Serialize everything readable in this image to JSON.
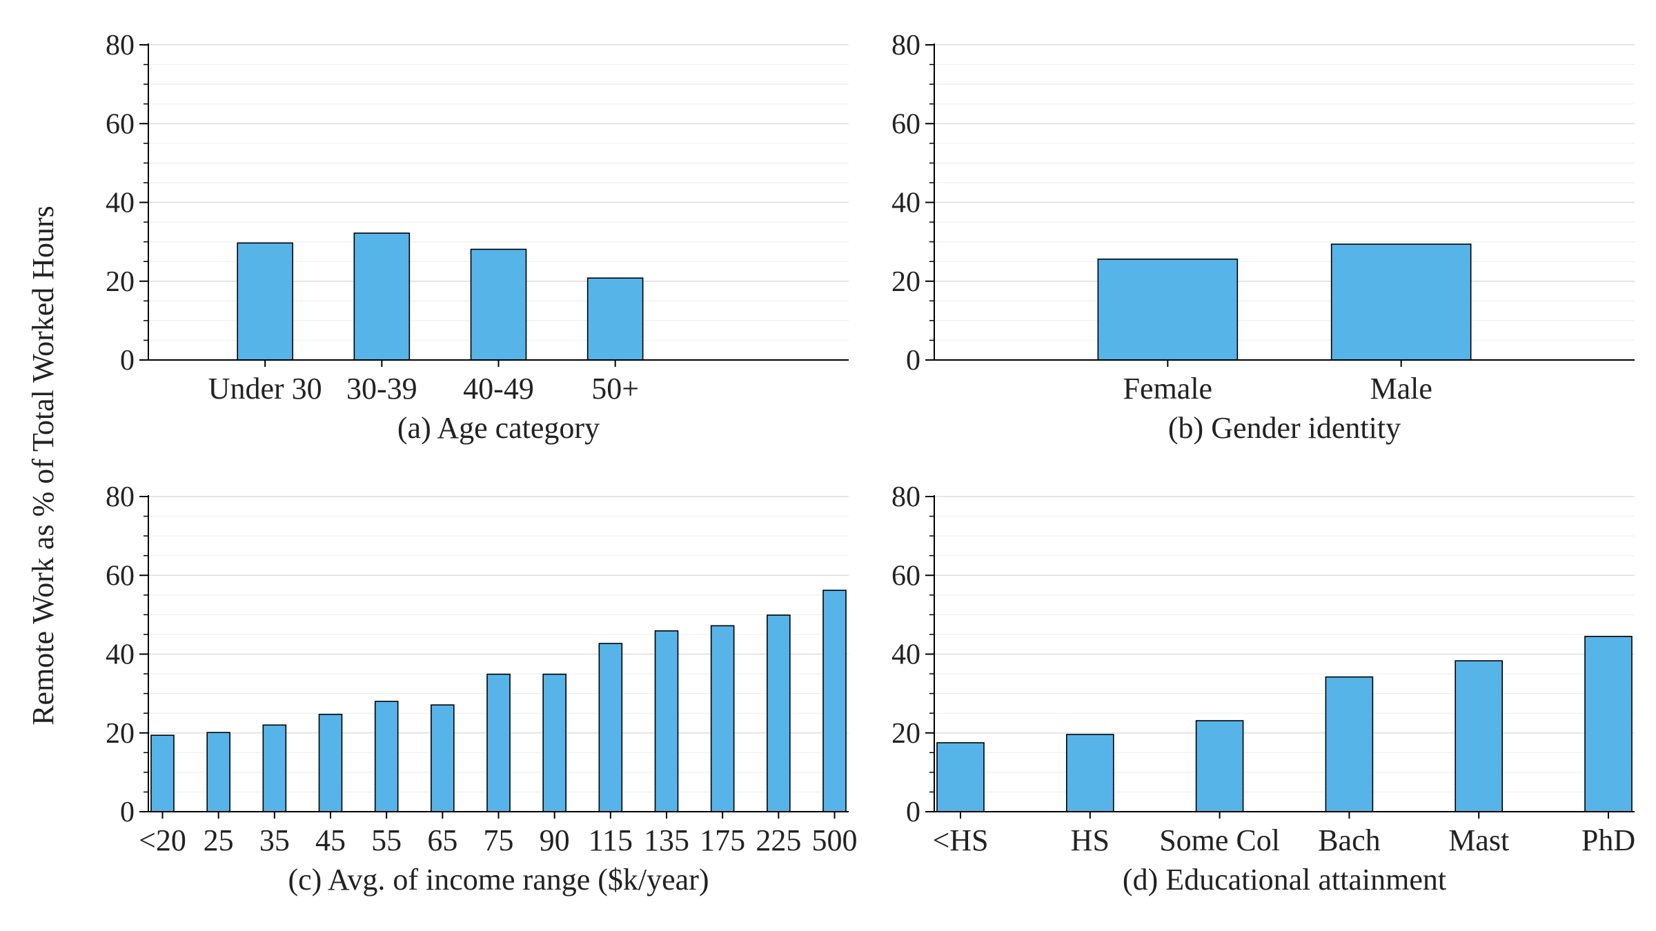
{
  "figure": {
    "ylabel": "Remote Work as % of Total Worked Hours",
    "bar_color": "#56b4e9",
    "edge_color": "#000000"
  },
  "chart_data": [
    {
      "type": "bar",
      "title": "(a) Age category",
      "categories": [
        "Under 30",
        "30-39",
        "40-49",
        "50+"
      ],
      "values": [
        29.7,
        32.2,
        28.1,
        20.8
      ],
      "ylim": [
        0,
        80
      ],
      "yticks": [
        "0",
        "20",
        "40",
        "60",
        "80"
      ],
      "grid": true
    },
    {
      "type": "bar",
      "title": "(b) Gender identity",
      "categories": [
        "Female",
        "Male"
      ],
      "values": [
        25.6,
        29.4
      ],
      "ylim": [
        0,
        80
      ],
      "yticks": [
        "0",
        "20",
        "40",
        "60",
        "80"
      ],
      "grid": true
    },
    {
      "type": "bar",
      "title": "(c) Avg. of income range ($k/year)",
      "categories": [
        "<20",
        "25",
        "35",
        "45",
        "55",
        "65",
        "75",
        "90",
        "115",
        "135",
        "175",
        "225",
        "500"
      ],
      "values": [
        19.4,
        20.1,
        22.0,
        24.7,
        28.0,
        27.1,
        34.9,
        34.9,
        42.7,
        45.9,
        47.2,
        49.9,
        56.2
      ],
      "ylim": [
        0,
        80
      ],
      "yticks": [
        "0",
        "20",
        "40",
        "60",
        "80"
      ],
      "grid": true
    },
    {
      "type": "bar",
      "title": "(d) Educational attainment",
      "categories": [
        "<HS",
        "HS",
        "Some Col",
        "Bach",
        "Mast",
        "PhD"
      ],
      "values": [
        17.5,
        19.6,
        23.1,
        34.2,
        38.3,
        44.5
      ],
      "ylim": [
        0,
        80
      ],
      "yticks": [
        "0",
        "20",
        "40",
        "60",
        "80"
      ],
      "grid": true
    }
  ]
}
